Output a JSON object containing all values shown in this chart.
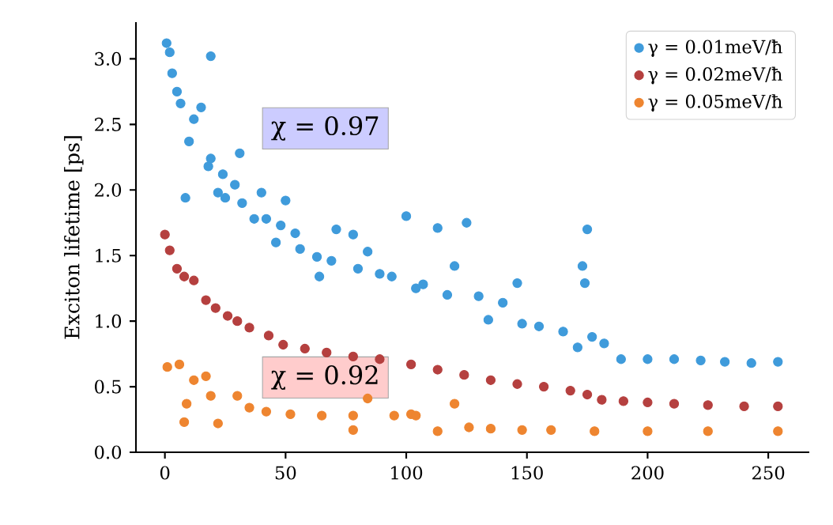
{
  "chart_data": {
    "type": "scatter",
    "ylabel": "Exciton lifetime [ps]",
    "xlim": [
      -12,
      267
    ],
    "ylim": [
      0,
      3.28
    ],
    "xticks": [
      0,
      50,
      100,
      150,
      200,
      250
    ],
    "yticks": [
      {
        "value": 0,
        "label": "0.0"
      },
      {
        "value": 0.5,
        "label": "0.5"
      },
      {
        "value": 1,
        "label": "1.0"
      },
      {
        "value": 1.5,
        "label": "1.5"
      },
      {
        "value": 2,
        "label": "2.0"
      },
      {
        "value": 2.5,
        "label": "2.5"
      },
      {
        "value": 3,
        "label": "3.0"
      }
    ],
    "marker": "circle",
    "legend": "top right",
    "grid": false,
    "annotations": [
      "χ = 0.97",
      "χ = 0.92"
    ],
    "series": [
      {
        "name": "γ = 0.01meV/ħ",
        "color": "#3f9bdb",
        "x": [
          0.7,
          2,
          3,
          5,
          6.5,
          8.5,
          10,
          12,
          15,
          18,
          19,
          19,
          22,
          24,
          25,
          29,
          31,
          32,
          37,
          40,
          42,
          46,
          48,
          50,
          54,
          56,
          63,
          64,
          69,
          71,
          78,
          80,
          84,
          89,
          94,
          100,
          104,
          107,
          113,
          117,
          120,
          125,
          130,
          134,
          140,
          146,
          148,
          155,
          165,
          171,
          173,
          174,
          175,
          177,
          182,
          189,
          200,
          211,
          222,
          232,
          243,
          254
        ],
        "values": [
          3.12,
          3.05,
          2.89,
          2.75,
          2.66,
          1.94,
          2.37,
          2.54,
          2.63,
          2.18,
          2.24,
          3.02,
          1.98,
          2.12,
          1.94,
          2.04,
          2.28,
          1.9,
          1.78,
          1.98,
          1.78,
          1.6,
          1.73,
          1.92,
          1.67,
          1.55,
          1.49,
          1.34,
          1.46,
          1.7,
          1.66,
          1.4,
          1.53,
          1.36,
          1.34,
          1.8,
          1.25,
          1.28,
          1.71,
          1.2,
          1.42,
          1.75,
          1.19,
          1.01,
          1.14,
          1.29,
          0.98,
          0.96,
          0.92,
          0.8,
          1.42,
          1.29,
          1.7,
          0.88,
          0.83,
          0.71,
          0.71,
          0.71,
          0.7,
          0.69,
          0.68,
          0.69
        ]
      },
      {
        "name": "γ = 0.02meV/ħ",
        "color": "#b5403f",
        "x": [
          0,
          2,
          5,
          8,
          12,
          17,
          21,
          26,
          30,
          35,
          43,
          49,
          58,
          67,
          78,
          89,
          102,
          113,
          124,
          135,
          146,
          157,
          168,
          175,
          181,
          190,
          200,
          211,
          225,
          240,
          254
        ],
        "values": [
          1.66,
          1.54,
          1.4,
          1.34,
          1.31,
          1.16,
          1.1,
          1.04,
          1.0,
          0.95,
          0.89,
          0.82,
          0.79,
          0.76,
          0.73,
          0.71,
          0.67,
          0.63,
          0.59,
          0.55,
          0.52,
          0.5,
          0.47,
          0.44,
          0.4,
          0.39,
          0.38,
          0.37,
          0.36,
          0.35,
          0.35
        ]
      },
      {
        "name": "γ = 0.05meV/ħ",
        "color": "#ee8530",
        "x": [
          1,
          6,
          8,
          9,
          12,
          17,
          19,
          22,
          30,
          35,
          42,
          52,
          65,
          78,
          78,
          84,
          95,
          102,
          104,
          113,
          120,
          126,
          135,
          148,
          160,
          178,
          200,
          225,
          254
        ],
        "values": [
          0.65,
          0.67,
          0.23,
          0.37,
          0.55,
          0.58,
          0.43,
          0.22,
          0.43,
          0.34,
          0.31,
          0.29,
          0.28,
          0.28,
          0.17,
          0.41,
          0.28,
          0.29,
          0.28,
          0.16,
          0.37,
          0.19,
          0.18,
          0.17,
          0.17,
          0.16,
          0.16,
          0.16,
          0.16
        ]
      }
    ]
  }
}
